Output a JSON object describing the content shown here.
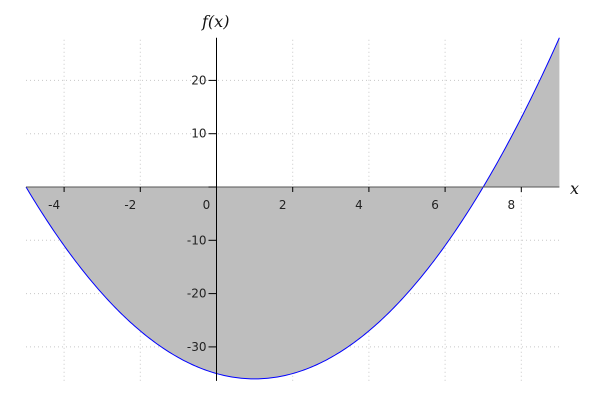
{
  "chart_data": {
    "type": "area",
    "function": "x^2 - 2x - 35",
    "xlabel": "x",
    "ylabel": "f(x)",
    "xlim": [
      -5,
      9
    ],
    "ylim": [
      -36,
      28
    ],
    "x_ticks": [
      -4,
      -2,
      0,
      2,
      4,
      6,
      8
    ],
    "y_ticks": [
      -30,
      -20,
      -10,
      10,
      20
    ],
    "x_tick_labels": [
      "-4",
      "-2",
      "0",
      "2",
      "4",
      "6",
      "8"
    ],
    "y_tick_labels": [
      "-30",
      "-20",
      "-10",
      "10",
      "20"
    ],
    "series": [
      {
        "x": [
          -5,
          -4,
          -3,
          -2,
          -1,
          0,
          1,
          2,
          3,
          4,
          5,
          6,
          7,
          8,
          9
        ],
        "y": [
          0,
          -11,
          -20,
          -27,
          -32,
          -35,
          -36,
          -35,
          -32,
          -27,
          -20,
          -11,
          0,
          13,
          28
        ]
      }
    ],
    "fill": "between curve and x-axis",
    "grid": true,
    "colors": {
      "line": "#0000ff",
      "fill": "#bebebe",
      "grid": "#c8c8c8",
      "axis": "#000000"
    }
  }
}
